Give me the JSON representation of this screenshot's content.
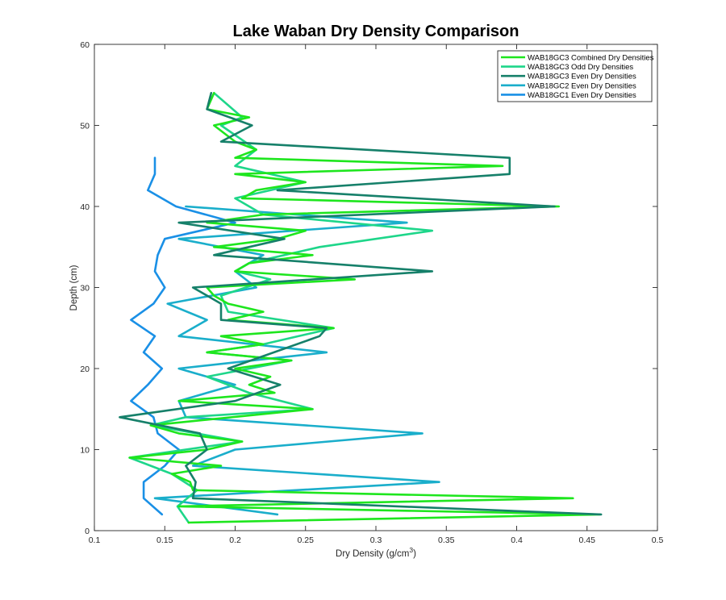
{
  "chart_data": {
    "type": "line",
    "title": "Lake Waban Dry Density Comparison",
    "xlabel": "Dry Density (g/cm",
    "xlabel_superscript": "3",
    "xlabel_suffix": ")",
    "ylabel": "Depth (cm)",
    "xlim": [
      0.1,
      0.5
    ],
    "ylim": [
      0,
      60
    ],
    "xticks": [
      0.1,
      0.15,
      0.2,
      0.25,
      0.3,
      0.35,
      0.4,
      0.45,
      0.5
    ],
    "xtick_labels": [
      "0.1",
      "0.15",
      "0.2",
      "0.25",
      "0.3",
      "0.35",
      "0.4",
      "0.45",
      "0.5"
    ],
    "yticks": [
      0,
      10,
      20,
      30,
      40,
      50,
      60
    ],
    "ytick_labels": [
      "0",
      "10",
      "20",
      "30",
      "40",
      "50",
      "60"
    ],
    "grid": false,
    "legend_position": "top-right",
    "series": [
      {
        "name": "WAB18GC3 Combined Dry Densities",
        "color": "#1ee61e",
        "points": [
          [
            0.167,
            1
          ],
          [
            0.459,
            2
          ],
          [
            0.16,
            3
          ],
          [
            0.44,
            4
          ],
          [
            0.17,
            5
          ],
          [
            0.168,
            6
          ],
          [
            0.155,
            7
          ],
          [
            0.19,
            8
          ],
          [
            0.125,
            9
          ],
          [
            0.18,
            10
          ],
          [
            0.205,
            11
          ],
          [
            0.16,
            12
          ],
          [
            0.14,
            13
          ],
          [
            0.255,
            15
          ],
          [
            0.16,
            16
          ],
          [
            0.228,
            17
          ],
          [
            0.21,
            18
          ],
          [
            0.225,
            19
          ],
          [
            0.2,
            20
          ],
          [
            0.24,
            21
          ],
          [
            0.18,
            22
          ],
          [
            0.22,
            23
          ],
          [
            0.19,
            24
          ],
          [
            0.27,
            25
          ],
          [
            0.195,
            26
          ],
          [
            0.22,
            27
          ],
          [
            0.195,
            28
          ],
          [
            0.185,
            29
          ],
          [
            0.18,
            30
          ],
          [
            0.285,
            31
          ],
          [
            0.2,
            32
          ],
          [
            0.21,
            33
          ],
          [
            0.255,
            34
          ],
          [
            0.185,
            35
          ],
          [
            0.23,
            36
          ],
          [
            0.25,
            37
          ],
          [
            0.18,
            38
          ],
          [
            0.22,
            39
          ],
          [
            0.43,
            40
          ],
          [
            0.205,
            41
          ],
          [
            0.215,
            42
          ],
          [
            0.25,
            43
          ],
          [
            0.2,
            44
          ],
          [
            0.39,
            45
          ],
          [
            0.2,
            46
          ],
          [
            0.215,
            47
          ],
          [
            0.2,
            48
          ],
          [
            0.185,
            50
          ],
          [
            0.21,
            51
          ],
          [
            0.18,
            52
          ],
          [
            0.185,
            54
          ]
        ]
      },
      {
        "name": "WAB18GC3 Odd Dry Densities",
        "color": "#1ed68a",
        "points": [
          [
            0.167,
            1
          ],
          [
            0.159,
            3
          ],
          [
            0.173,
            5
          ],
          [
            0.155,
            7
          ],
          [
            0.125,
            9
          ],
          [
            0.205,
            11
          ],
          [
            0.14,
            13
          ],
          [
            0.165,
            14
          ],
          [
            0.255,
            15
          ],
          [
            0.21,
            17
          ],
          [
            0.18,
            19
          ],
          [
            0.24,
            21
          ],
          [
            0.18,
            22
          ],
          [
            0.22,
            23
          ],
          [
            0.27,
            25
          ],
          [
            0.195,
            27
          ],
          [
            0.19,
            29
          ],
          [
            0.225,
            31
          ],
          [
            0.2,
            32
          ],
          [
            0.21,
            33
          ],
          [
            0.26,
            35
          ],
          [
            0.34,
            37
          ],
          [
            0.22,
            39
          ],
          [
            0.2,
            41
          ],
          [
            0.25,
            43
          ],
          [
            0.2,
            45
          ],
          [
            0.215,
            47
          ],
          [
            0.19,
            50
          ],
          [
            0.205,
            51
          ],
          [
            0.185,
            54
          ]
        ]
      },
      {
        "name": "WAB18GC3 Even Dry Densities",
        "color": "#16806a",
        "points": [
          [
            0.46,
            2
          ],
          [
            0.17,
            4
          ],
          [
            0.172,
            6
          ],
          [
            0.165,
            8
          ],
          [
            0.18,
            10
          ],
          [
            0.175,
            12
          ],
          [
            0.118,
            14
          ],
          [
            0.2,
            16
          ],
          [
            0.232,
            18
          ],
          [
            0.195,
            20
          ],
          [
            0.26,
            24
          ],
          [
            0.265,
            25
          ],
          [
            0.19,
            26
          ],
          [
            0.19,
            28
          ],
          [
            0.17,
            30
          ],
          [
            0.34,
            32
          ],
          [
            0.185,
            34
          ],
          [
            0.235,
            36
          ],
          [
            0.16,
            38
          ],
          [
            0.427,
            40
          ],
          [
            0.23,
            42
          ],
          [
            0.395,
            44
          ],
          [
            0.395,
            46
          ],
          [
            0.19,
            48
          ],
          [
            0.212,
            50
          ],
          [
            0.18,
            52
          ],
          [
            0.183,
            54
          ]
        ]
      },
      {
        "name": "WAB18GC2 Even Dry Densities",
        "color": "#1aaecb",
        "points": [
          [
            0.23,
            2
          ],
          [
            0.143,
            4
          ],
          [
            0.345,
            6
          ],
          [
            0.17,
            8
          ],
          [
            0.2,
            10
          ],
          [
            0.333,
            12
          ],
          [
            0.165,
            14
          ],
          [
            0.16,
            16
          ],
          [
            0.2,
            18
          ],
          [
            0.16,
            20
          ],
          [
            0.265,
            22
          ],
          [
            0.16,
            24
          ],
          [
            0.18,
            26
          ],
          [
            0.152,
            28
          ],
          [
            0.215,
            30
          ],
          [
            0.2,
            32
          ],
          [
            0.22,
            34
          ],
          [
            0.16,
            36
          ],
          [
            0.322,
            38
          ],
          [
            0.165,
            40
          ]
        ]
      },
      {
        "name": "WAB18GC1 Even Dry Densities",
        "color": "#1a90e6",
        "points": [
          [
            0.148,
            2
          ],
          [
            0.135,
            4
          ],
          [
            0.135,
            6
          ],
          [
            0.15,
            8
          ],
          [
            0.16,
            10
          ],
          [
            0.145,
            12
          ],
          [
            0.142,
            14
          ],
          [
            0.126,
            16
          ],
          [
            0.138,
            18
          ],
          [
            0.148,
            20
          ],
          [
            0.135,
            22
          ],
          [
            0.143,
            24
          ],
          [
            0.126,
            26
          ],
          [
            0.142,
            28
          ],
          [
            0.15,
            30
          ],
          [
            0.143,
            32
          ],
          [
            0.145,
            34
          ],
          [
            0.15,
            36
          ],
          [
            0.2,
            38
          ],
          [
            0.158,
            40
          ],
          [
            0.138,
            42
          ],
          [
            0.143,
            44
          ],
          [
            0.143,
            46
          ]
        ]
      }
    ]
  }
}
